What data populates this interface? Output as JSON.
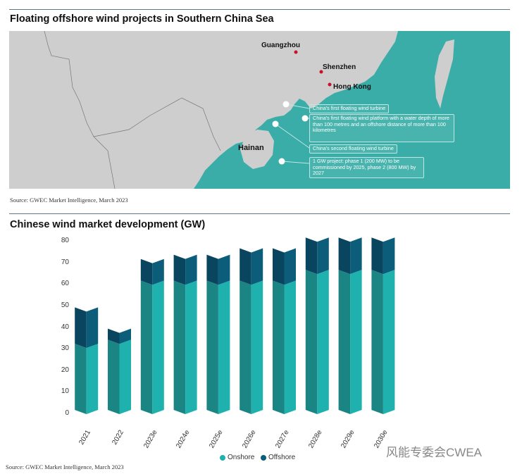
{
  "map_section": {
    "title": "Floating offshore wind projects in Southern China Sea",
    "cities": [
      "Guangzhou",
      "Shenzhen",
      "Hong Kong",
      "Hainan"
    ],
    "annotations": [
      "China's first floating wind turbine",
      "China's first floating wind platform with a water depth of more than 100 metres and an offshore distance of more than 100 kilometres",
      "China's second floating wind turbine",
      "1 GW project: phase 1 (200 MW) to be commissioned by 2025, phase 2 (800 MW) by 2027"
    ],
    "source": "Source: GWEC Market Intelligence, March 2023",
    "colors": {
      "land": "#cfcecf",
      "sea": "#3aada8",
      "city_dot": "#c8102e"
    }
  },
  "chart_data": {
    "type": "bar",
    "stacked": true,
    "title": "Chinese wind market development (GW)",
    "categories": [
      "2021",
      "2022",
      "2023e",
      "2024e",
      "2025e",
      "2026e",
      "2027e",
      "2028e",
      "2029e",
      "2030e"
    ],
    "series": [
      {
        "name": "Onshore",
        "color": "#1fb1ae",
        "values": [
          30.7,
          32.6,
          60,
          60,
          60,
          60,
          60,
          65,
          65,
          65
        ]
      },
      {
        "name": "Offshore",
        "color": "#0b5d7a",
        "values": [
          16.9,
          5.1,
          10,
          12,
          12,
          15,
          15,
          15,
          15,
          15
        ]
      }
    ],
    "yticks": [
      "0",
      "10",
      "20",
      "30",
      "40",
      "50",
      "60",
      "70",
      "80"
    ],
    "ylim": [
      0,
      80
    ],
    "legend": "bottom",
    "source": "Source: GWEC Market Intelligence, March 2023"
  },
  "watermark": "风能专委会CWEA"
}
